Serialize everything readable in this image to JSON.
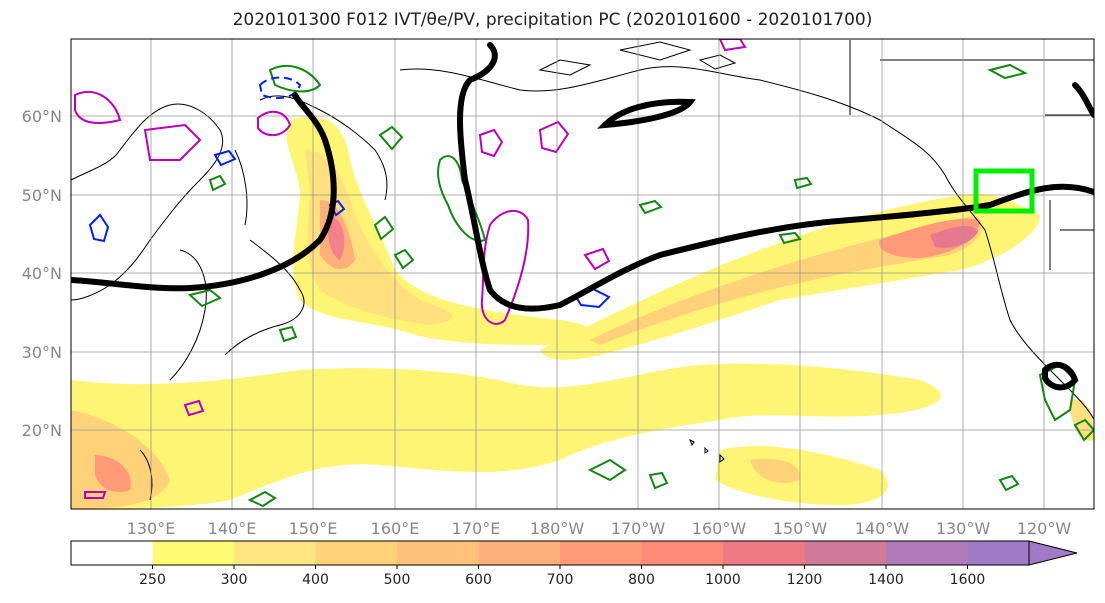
{
  "map": {
    "title": "2020101300 F012 IVT/θe/PV, precipitation PC (2020101600 - 2020101700)",
    "lat_labels": [
      "60°N",
      "50°N",
      "40°N",
      "30°N",
      "20°N"
    ],
    "lon_labels": [
      "130°E",
      "140°E",
      "150°E",
      "160°E",
      "170°E",
      "180°W",
      "170°W",
      "160°W",
      "150°W",
      "140°W",
      "130°W",
      "120°W"
    ]
  },
  "colorbar": {
    "ticks": [
      "250",
      "300",
      "400",
      "500",
      "600",
      "700",
      "800",
      "1000",
      "1200",
      "1400",
      "1600"
    ],
    "colors": [
      "#ffffff",
      "#fffc74",
      "#ffe680",
      "#ffd27a",
      "#ffc27a",
      "#ffb07a",
      "#ff9a78",
      "#ff8a7a",
      "#f07a84",
      "#d07a9a",
      "#b07ab8",
      "#a07ac4"
    ]
  },
  "colors": {
    "ivt_line": "#000000",
    "theta_e": "#118811",
    "pv_blue": "#0022ee",
    "pv_magenta": "#bb00bb",
    "highlight_box": "#00ee00",
    "coast": "#000000",
    "grid": "#999999"
  }
}
